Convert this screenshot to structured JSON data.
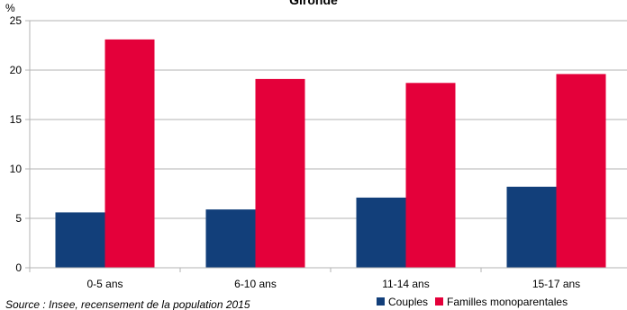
{
  "chart_data": {
    "type": "bar",
    "title": "Gironde",
    "ylabel": "%",
    "xlabel": "",
    "categories": [
      "0-5 ans",
      "6-10 ans",
      "11-14 ans",
      "15-17 ans"
    ],
    "series": [
      {
        "name": "Couples",
        "color": "#123F7A",
        "values": [
          5.6,
          5.9,
          7.1,
          8.2
        ]
      },
      {
        "name": "Familles monoparentales",
        "color": "#E4003A",
        "values": [
          23.1,
          19.1,
          18.7,
          19.6
        ]
      }
    ],
    "ylim": [
      0,
      25
    ],
    "yticks": [
      0,
      5,
      10,
      15,
      20,
      25
    ],
    "grid": true,
    "legend_position": "bottom-right"
  },
  "source": "Source : Insee, recensement de la population 2015"
}
